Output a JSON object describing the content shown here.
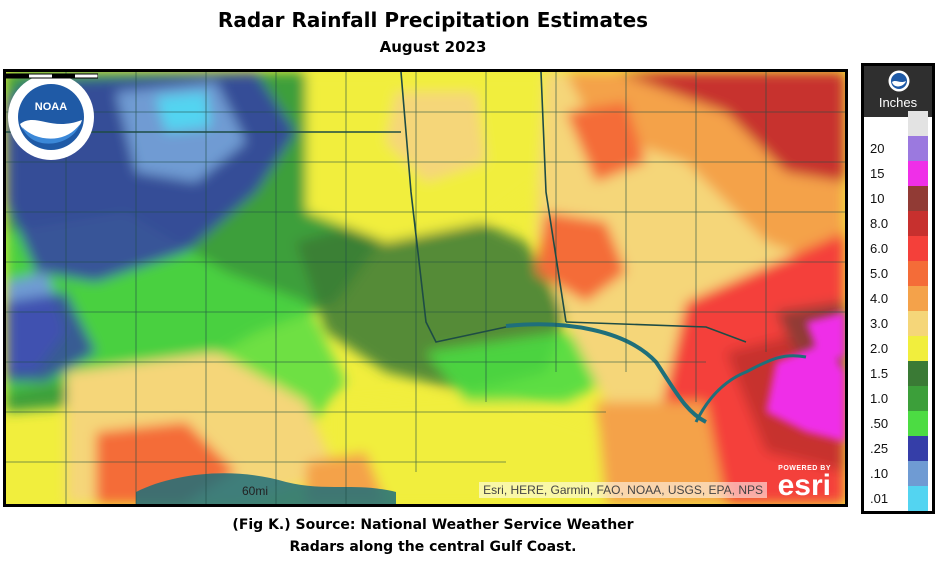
{
  "title": "Radar Rainfall Precipitation Estimates",
  "subtitle": "August 2023",
  "caption": {
    "line1": "(Fig K.) Source: National Weather Service Weather",
    "line2": "Radars along the central Gulf Coast."
  },
  "map": {
    "attribution": "Esri, HERE, Garmin, FAO, NOAA, USGS, EPA, NPS",
    "scale_label": "60mi",
    "esri_powered": "POWERED BY",
    "esri_word": "esri",
    "colors": {
      "water": "#1f6f7a",
      "border": "#1e4c45"
    }
  },
  "legend": {
    "units": "Inches",
    "items": [
      {
        "label": "",
        "color": "#e3e3e3"
      },
      {
        "label": "20",
        "color": "#9b79df"
      },
      {
        "label": "15",
        "color": "#ef2fe8"
      },
      {
        "label": "10",
        "color": "#913b35"
      },
      {
        "label": "8.0",
        "color": "#c7302e"
      },
      {
        "label": "6.0",
        "color": "#f4403a"
      },
      {
        "label": "5.0",
        "color": "#f46c38"
      },
      {
        "label": "4.0",
        "color": "#f4a24a"
      },
      {
        "label": "3.0",
        "color": "#f5d679"
      },
      {
        "label": "2.0",
        "color": "#f1ee3d"
      },
      {
        "label": "1.5",
        "color": "#3a7a35"
      },
      {
        "label": "1.0",
        "color": "#3c9f3a"
      },
      {
        "label": ".50",
        "color": "#4cdc43"
      },
      {
        "label": ".25",
        "color": "#353ea8"
      },
      {
        "label": ".10",
        "color": "#6f9bd3"
      },
      {
        "label": ".01",
        "color": "#53d4f1"
      },
      {
        "label": "",
        "color": "#9b9b9b"
      }
    ]
  }
}
